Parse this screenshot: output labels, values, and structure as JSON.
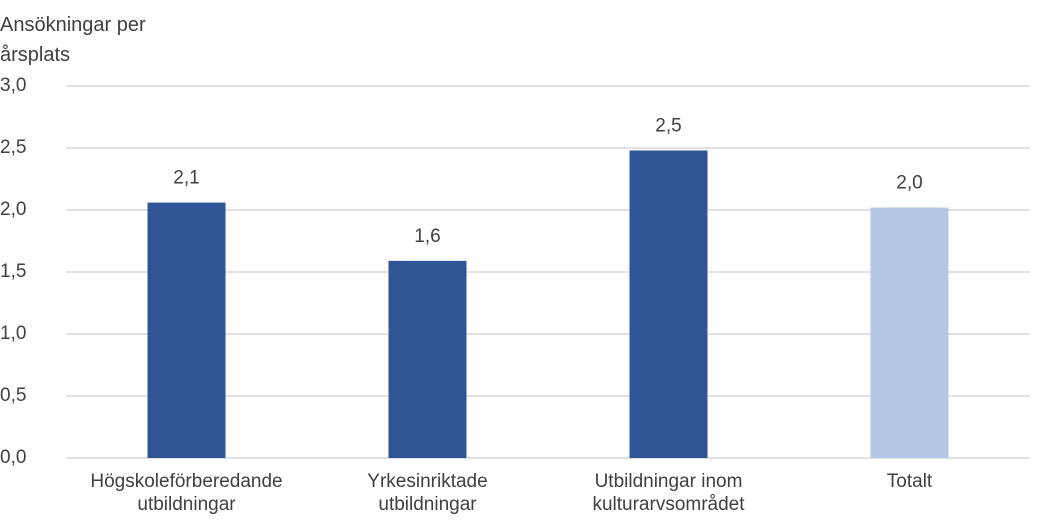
{
  "chart_data": {
    "type": "bar",
    "y_label": "Ansökningar per årsplats",
    "categories": [
      "Högskoleförberedande utbildningar",
      "Yrkesinriktade utbildningar",
      "Utbildningar inom kulturarvsområdet",
      "Totalt"
    ],
    "values": [
      2.06,
      1.59,
      2.48,
      2.02
    ],
    "value_labels": [
      "2,1",
      "1,6",
      "2,5",
      "2,0"
    ],
    "colors": [
      "#2f5597",
      "#2f5597",
      "#2f5597",
      "#b4c7e7"
    ],
    "ylim": [
      0,
      3
    ],
    "yticks": [
      {
        "value": 0,
        "label": "0,0"
      },
      {
        "value": 0.5,
        "label": "0,5"
      },
      {
        "value": 1,
        "label": "1,0"
      },
      {
        "value": 1.5,
        "label": "1,5"
      },
      {
        "value": 2,
        "label": "2,0"
      },
      {
        "value": 2.5,
        "label": "2,5"
      },
      {
        "value": 3,
        "label": "3,0"
      }
    ],
    "grid": true
  }
}
